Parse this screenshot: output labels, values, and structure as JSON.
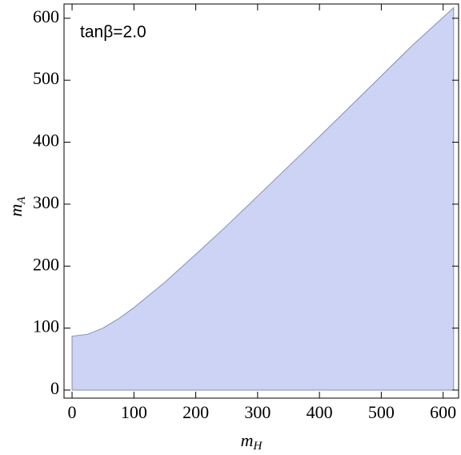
{
  "chart_data": {
    "type": "area",
    "annotation": "tanβ=2.0",
    "x_label": "m",
    "x_label_sub": "H",
    "y_label": "m",
    "y_label_sub": "A",
    "x": [
      0,
      25,
      50,
      75,
      100,
      150,
      200,
      250,
      300,
      350,
      400,
      450,
      500,
      550,
      617
    ],
    "values": [
      87,
      90,
      100,
      115,
      133,
      174,
      219,
      265,
      313,
      361,
      409,
      458,
      507,
      556,
      617
    ],
    "color": "#cdd3f4",
    "line_color": "#8a8fa8",
    "xlim": [
      -13,
      625
    ],
    "ylim": [
      -13,
      623
    ],
    "xticks": [
      0,
      100,
      200,
      300,
      400,
      500,
      600
    ],
    "yticks": [
      0,
      100,
      200,
      300,
      400,
      500,
      600
    ]
  }
}
